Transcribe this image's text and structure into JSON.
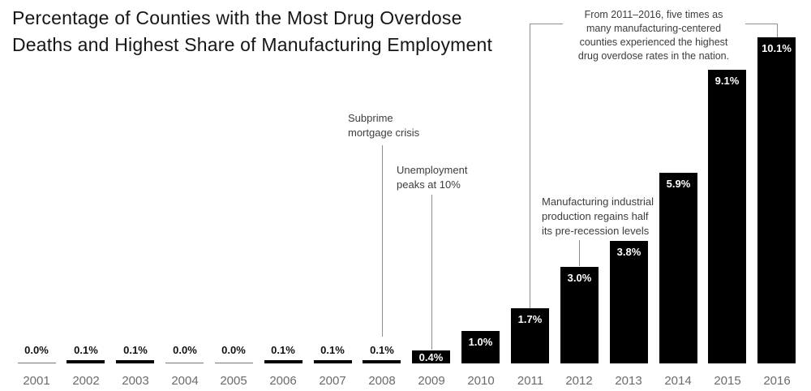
{
  "title": {
    "lines": [
      "Percentage of Counties with the Most Drug Overdose",
      "Deaths and Highest Share of Manufacturing Employment"
    ]
  },
  "chart_data": {
    "type": "bar",
    "title": "Percentage of Counties with the Most Drug Overdose Deaths and Highest Share of Manufacturing Employment",
    "xlabel": "",
    "ylabel": "",
    "ylim": [
      0,
      10.5
    ],
    "grid": false,
    "legend": false,
    "categories": [
      "2001",
      "2002",
      "2003",
      "2004",
      "2005",
      "2006",
      "2007",
      "2008",
      "2009",
      "2010",
      "2011",
      "2012",
      "2013",
      "2014",
      "2015",
      "2016"
    ],
    "values": [
      0.0,
      0.1,
      0.1,
      0.0,
      0.0,
      0.1,
      0.1,
      0.1,
      0.4,
      1.0,
      1.7,
      3.0,
      3.8,
      5.9,
      9.1,
      10.1
    ],
    "value_labels": [
      "0.0%",
      "0.1%",
      "0.1%",
      "0.0%",
      "0.0%",
      "0.1%",
      "0.1%",
      "0.1%",
      "0.4%",
      "1.0%",
      "1.7%",
      "3.0%",
      "3.8%",
      "5.9%",
      "9.1%",
      "10.1%"
    ],
    "annotations": [
      {
        "id": "subprime",
        "lines": [
          "Subprime",
          "mortgage crisis"
        ],
        "target_year": "2008"
      },
      {
        "id": "unemployment",
        "lines": [
          "Unemployment",
          "peaks at 10%"
        ],
        "target_year": "2009"
      },
      {
        "id": "manufacturing",
        "lines": [
          "Manufacturing industrial",
          "production regains half",
          "its pre-recession levels"
        ],
        "target_year": "2012"
      },
      {
        "id": "bracket",
        "lines": [
          "From 2011–2016, five times as",
          "many manufacturing-centered",
          "counties experienced the highest",
          "drug overdose rates in the nation."
        ],
        "target_years": [
          "2011",
          "2016"
        ]
      }
    ]
  },
  "colors": {
    "background": "#ffffff",
    "bar": "#000000",
    "zero_bar": "#777777",
    "title_text": "#161616",
    "annotation_text": "#3d3d3d",
    "annotation_line": "#8f8f8f",
    "year_label": "#6b6b6b",
    "value_label": "#111111",
    "value_label_inside": "#ffffff"
  }
}
